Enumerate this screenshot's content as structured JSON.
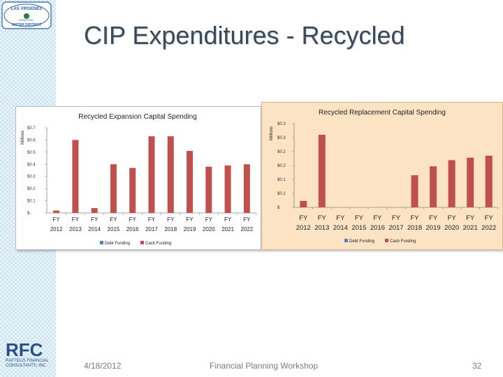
{
  "slide": {
    "title": "CIP Expenditures - Recycled",
    "date": "4/18/2012",
    "footer_text": "Financial Planning Workshop",
    "page_number": "32"
  },
  "logos": {
    "top_text_upper": "LAS VIRGENES",
    "top_text_mid": "MUNICIPAL",
    "top_text_lower": "WATER DISTRICT",
    "bottom_text_main": "RFC",
    "bottom_text_sub1": "RAFTELIS FINANCIAL",
    "bottom_text_sub2": "CONSULTANTS, INC."
  },
  "colors": {
    "cash_funding": "#c0504d",
    "debt_funding": "#4f81bd",
    "right_panel_bg": "#fbe3c4",
    "title_text": "#3a4a5a"
  },
  "chart_data": [
    {
      "type": "bar",
      "title": "Recycled Expansion Capital Spending",
      "ylabel": "Millions",
      "xlabel": "",
      "categories": [
        "FY 2012",
        "FY 2013",
        "FY 2014",
        "FY 2015",
        "FY 2016",
        "FY 2017",
        "FY 2018",
        "FY 2019",
        "FY 2020",
        "FY 2021",
        "FY 2022"
      ],
      "cat_top": [
        "FY",
        "FY",
        "FY",
        "FY",
        "FY",
        "FY",
        "FY",
        "FY",
        "FY",
        "FY",
        "FY"
      ],
      "cat_bottom": [
        "2012",
        "2013",
        "2014",
        "2015",
        "2016",
        "2017",
        "2018",
        "2019",
        "2020",
        "2021",
        "2022"
      ],
      "series": [
        {
          "name": "Debt Funding",
          "values": [
            0,
            0,
            0,
            0,
            0,
            0,
            0,
            0,
            0,
            0,
            0
          ]
        },
        {
          "name": "Cash Funding",
          "values": [
            0.02,
            0.6,
            0.04,
            0.4,
            0.37,
            0.63,
            0.63,
            0.51,
            0.38,
            0.39,
            0.4
          ]
        }
      ],
      "ylim": [
        0,
        0.7
      ],
      "ticks": [
        0,
        0.1,
        0.2,
        0.3,
        0.4,
        0.5,
        0.6,
        0.7
      ],
      "tick_labels": [
        "$-",
        "$0.1",
        "$0.2",
        "$0.3",
        "$0.4",
        "$0.5",
        "$0.6",
        "$0.7"
      ],
      "legend": [
        "Debt Funding",
        "Cash Funding"
      ],
      "legend_position": "bottom"
    },
    {
      "type": "bar",
      "title": "Recycled Replacement Capital Spending",
      "ylabel": "Millions",
      "xlabel": "",
      "categories": [
        "FY 2012",
        "FY 2013",
        "FY 2014",
        "FY 2015",
        "FY 2016",
        "FY 2017",
        "FY 2018",
        "FY 2019",
        "FY 2020",
        "FY 2021",
        "FY 2022"
      ],
      "cat_top": [
        "FY",
        "FY",
        "FY",
        "FY",
        "FY",
        "FY",
        "FY",
        "FY",
        "FY",
        "FY",
        "FY"
      ],
      "cat_bottom": [
        "2012",
        "2013",
        "2014",
        "2015",
        "2016",
        "2017",
        "2018",
        "2019",
        "2020",
        "2021",
        "2022"
      ],
      "series": [
        {
          "name": "Debt Funding",
          "values": [
            0,
            0,
            0,
            0,
            0,
            0,
            0,
            0,
            0,
            0,
            0
          ]
        },
        {
          "name": "Cash Funding",
          "values": [
            0.023,
            0.26,
            0,
            0,
            0,
            0,
            0.115,
            0.147,
            0.169,
            0.178,
            0.185
          ]
        }
      ],
      "ylim": [
        0,
        0.3
      ],
      "ticks": [
        0,
        0.05,
        0.1,
        0.15,
        0.2,
        0.25,
        0.3
      ],
      "tick_labels": [
        "$",
        "$0.1",
        "$0.1",
        "$0.2",
        "$0.2",
        "$0.3",
        "$0.3"
      ],
      "legend": [
        "Debt Funding",
        "Cash Funding"
      ],
      "legend_position": "bottom"
    }
  ]
}
